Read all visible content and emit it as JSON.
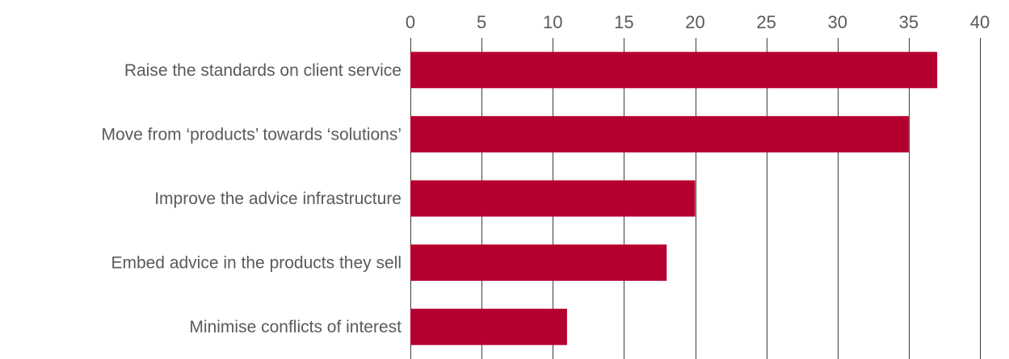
{
  "chart_data": {
    "type": "bar",
    "orientation": "horizontal",
    "title": "",
    "xlabel": "",
    "ylabel": "",
    "categories": [
      "Raise the standards on client service",
      "Move from ‘products’ towards  ‘solutions’",
      "Improve the advice infrastructure",
      "Embed advice in the products they sell",
      "Minimise conflicts of interest"
    ],
    "values": [
      37,
      35,
      20,
      18,
      11
    ],
    "xlim": [
      0,
      40
    ],
    "xticks": [
      0,
      5,
      10,
      15,
      20,
      25,
      30,
      35,
      40
    ],
    "axis_position": "top",
    "grid": true,
    "legend": "none",
    "colors": {
      "bar": "#b5002f",
      "grid": "#3c3c3c",
      "text": "#5a5a5a"
    }
  }
}
